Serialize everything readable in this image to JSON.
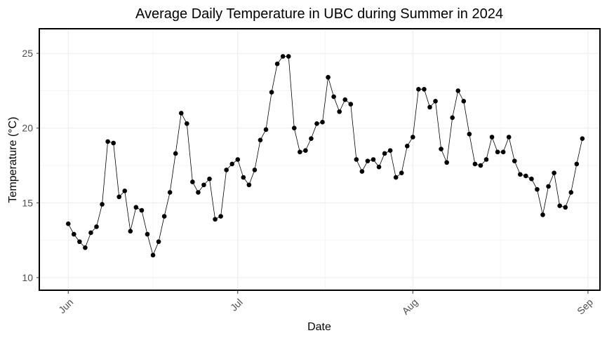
{
  "chart_data": {
    "type": "line",
    "title": "Average Daily Temperature in UBC during Summer in 2024",
    "xlabel": "Date",
    "ylabel": "Temperature (°C)",
    "x_tick_labels": [
      "Jun",
      "Jul",
      "Aug",
      "Sep"
    ],
    "x_ticks": [
      "2024-06-01",
      "2024-07-01",
      "2024-08-01",
      "2024-09-01"
    ],
    "y_ticks": [
      10,
      15,
      20,
      25
    ],
    "ylim": [
      9.2,
      26.6
    ],
    "xlim": [
      "2024-05-27",
      "2024-09-03"
    ],
    "grid": true,
    "markers": true,
    "line_color": "#000000",
    "start_date": "2024-06-01",
    "x": [
      "2024-06-01",
      "2024-06-02",
      "2024-06-03",
      "2024-06-04",
      "2024-06-05",
      "2024-06-06",
      "2024-06-07",
      "2024-06-08",
      "2024-06-09",
      "2024-06-10",
      "2024-06-11",
      "2024-06-12",
      "2024-06-13",
      "2024-06-14",
      "2024-06-15",
      "2024-06-16",
      "2024-06-17",
      "2024-06-18",
      "2024-06-19",
      "2024-06-20",
      "2024-06-21",
      "2024-06-22",
      "2024-06-23",
      "2024-06-24",
      "2024-06-25",
      "2024-06-26",
      "2024-06-27",
      "2024-06-28",
      "2024-06-29",
      "2024-06-30",
      "2024-07-01",
      "2024-07-02",
      "2024-07-03",
      "2024-07-04",
      "2024-07-05",
      "2024-07-06",
      "2024-07-07",
      "2024-07-08",
      "2024-07-09",
      "2024-07-10",
      "2024-07-11",
      "2024-07-12",
      "2024-07-13",
      "2024-07-14",
      "2024-07-15",
      "2024-07-16",
      "2024-07-17",
      "2024-07-18",
      "2024-07-19",
      "2024-07-20",
      "2024-07-21",
      "2024-07-22",
      "2024-07-23",
      "2024-07-24",
      "2024-07-25",
      "2024-07-26",
      "2024-07-27",
      "2024-07-28",
      "2024-07-29",
      "2024-07-30",
      "2024-07-31",
      "2024-08-01",
      "2024-08-02",
      "2024-08-03",
      "2024-08-04",
      "2024-08-05",
      "2024-08-06",
      "2024-08-07",
      "2024-08-08",
      "2024-08-09",
      "2024-08-10",
      "2024-08-11",
      "2024-08-12",
      "2024-08-13",
      "2024-08-14",
      "2024-08-15",
      "2024-08-16",
      "2024-08-17",
      "2024-08-18",
      "2024-08-19",
      "2024-08-20",
      "2024-08-21",
      "2024-08-22",
      "2024-08-23",
      "2024-08-24",
      "2024-08-25",
      "2024-08-26",
      "2024-08-27",
      "2024-08-28",
      "2024-08-29",
      "2024-08-30",
      "2024-08-31"
    ],
    "y": [
      13.6,
      12.9,
      12.4,
      12.0,
      13.0,
      13.4,
      14.9,
      19.1,
      19.0,
      15.4,
      15.8,
      13.1,
      14.7,
      14.5,
      12.9,
      11.5,
      12.4,
      14.1,
      15.7,
      18.3,
      21.0,
      20.3,
      16.4,
      15.7,
      16.2,
      16.6,
      13.9,
      14.1,
      17.2,
      17.6,
      17.9,
      16.7,
      16.2,
      17.2,
      19.2,
      19.9,
      22.4,
      24.3,
      24.8,
      24.8,
      20.0,
      18.4,
      18.5,
      19.3,
      20.3,
      20.4,
      23.4,
      22.1,
      21.1,
      21.9,
      21.6,
      17.9,
      17.1,
      17.8,
      17.9,
      17.4,
      18.3,
      18.5,
      16.7,
      17.0,
      18.8,
      19.4,
      22.6,
      22.6,
      21.4,
      21.8,
      18.6,
      17.7,
      20.7,
      22.5,
      21.8,
      19.6,
      17.6,
      17.5,
      17.9,
      19.4,
      18.4,
      18.4,
      19.4,
      17.8,
      16.9,
      16.8,
      16.6,
      15.9,
      14.2,
      16.1,
      17.0,
      14.8,
      14.7,
      15.7,
      17.6,
      19.3
    ]
  }
}
